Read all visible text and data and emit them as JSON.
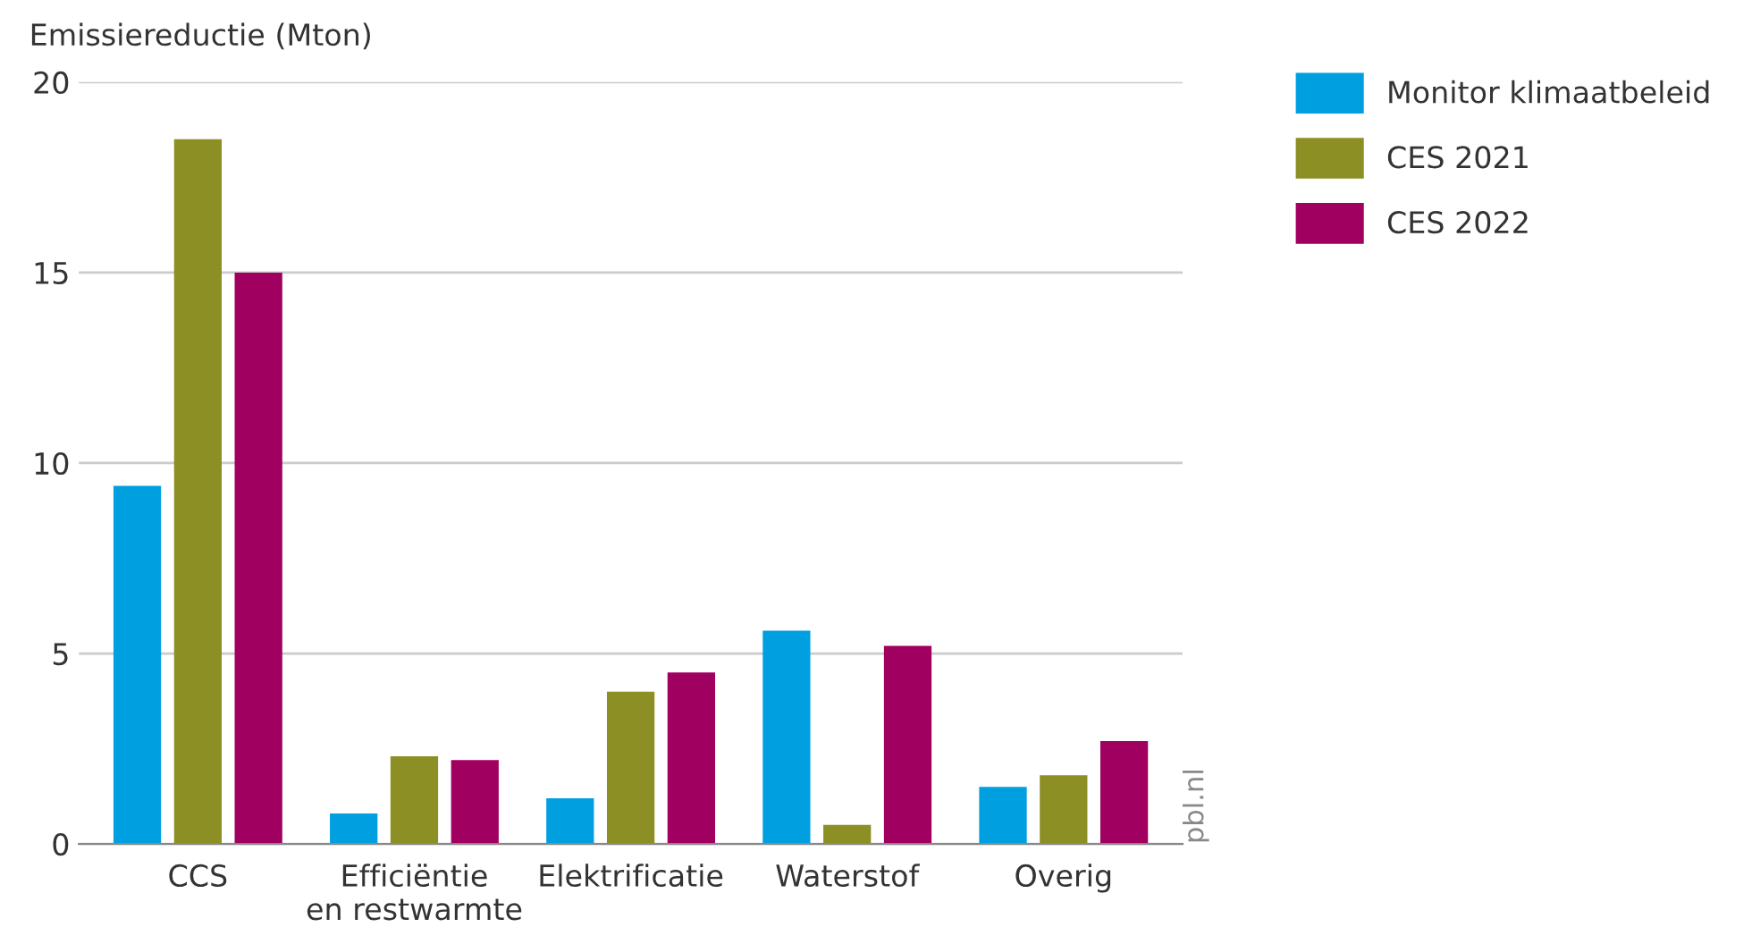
{
  "chart_data": {
    "type": "bar",
    "ylabel": "Emissiereductie (Mton)",
    "categories": [
      "CCS",
      "Efficiëntie\nen restwarmte",
      "Elektrificatie",
      "Waterstof",
      "Overig"
    ],
    "series": [
      {
        "name": "Monitor klimaatbeleid",
        "color": "#009fe0",
        "values": [
          9.4,
          0.8,
          1.2,
          5.6,
          1.5
        ]
      },
      {
        "name": "CES 2021",
        "color": "#8c8f24",
        "values": [
          18.5,
          2.3,
          4.0,
          0.5,
          1.8
        ]
      },
      {
        "name": "CES 2022",
        "color": "#a0005f",
        "values": [
          15.0,
          2.2,
          4.5,
          5.2,
          2.7
        ]
      }
    ],
    "ylim": [
      0,
      20
    ],
    "yticks": [
      0,
      5,
      10,
      15,
      20
    ],
    "grid": "y",
    "legend": "right",
    "annotations": [
      "pbl.nl"
    ]
  }
}
